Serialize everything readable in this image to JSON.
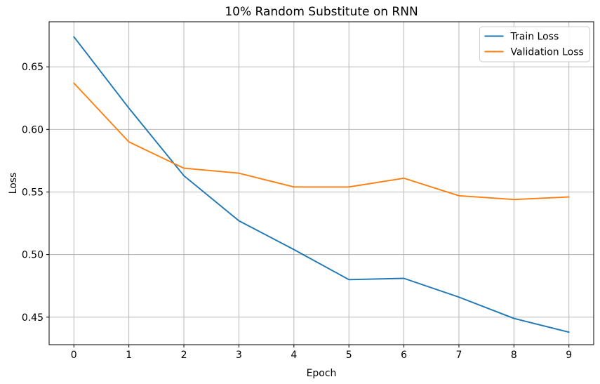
{
  "chart_data": {
    "type": "line",
    "title": "10% Random Substitute on RNN",
    "xlabel": "Epoch",
    "ylabel": "Loss",
    "x": [
      0,
      1,
      2,
      3,
      4,
      5,
      6,
      7,
      8,
      9
    ],
    "series": [
      {
        "name": "Train Loss",
        "color": "#1f77b4",
        "values": [
          0.674,
          0.617,
          0.563,
          0.527,
          0.504,
          0.48,
          0.481,
          0.466,
          0.449,
          0.438
        ]
      },
      {
        "name": "Validation Loss",
        "color": "#ff7f0e",
        "values": [
          0.637,
          0.59,
          0.569,
          0.565,
          0.554,
          0.554,
          0.561,
          0.547,
          0.544,
          0.546
        ]
      }
    ],
    "xlim": [
      -0.45,
      9.45
    ],
    "ylim": [
      0.428,
      0.686
    ],
    "xticks": [
      0,
      1,
      2,
      3,
      4,
      5,
      6,
      7,
      8,
      9
    ],
    "xtick_labels": [
      "0",
      "1",
      "2",
      "3",
      "4",
      "5",
      "6",
      "7",
      "8",
      "9"
    ],
    "yticks": [
      0.45,
      0.5,
      0.55,
      0.6,
      0.65
    ],
    "ytick_labels": [
      "0.45",
      "0.50",
      "0.55",
      "0.60",
      "0.65"
    ],
    "grid": true,
    "legend_position": "upper right",
    "colors": {
      "grid": "#b0b0b0",
      "axes_edge": "#000000",
      "text": "#000000",
      "background": "#ffffff"
    }
  }
}
